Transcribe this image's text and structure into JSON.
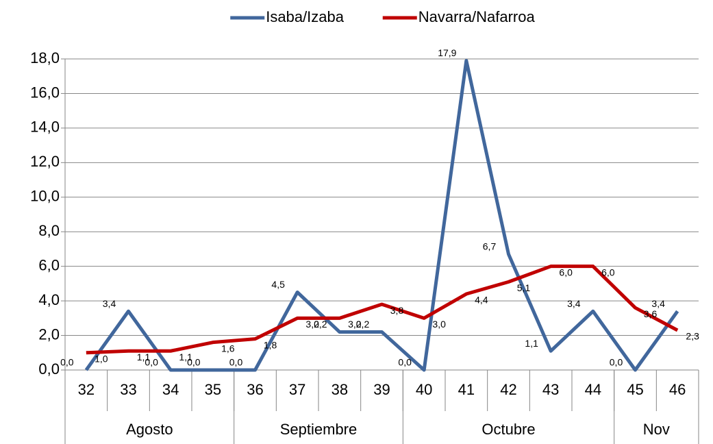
{
  "chart_data": {
    "type": "line",
    "categories": [
      "32",
      "33",
      "34",
      "35",
      "36",
      "37",
      "38",
      "39",
      "40",
      "41",
      "42",
      "43",
      "44",
      "45",
      "46"
    ],
    "category_groups": [
      "Agosto",
      "Agosto",
      "Agosto",
      "Agosto",
      "Septiembre",
      "Septiembre",
      "Septiembre",
      "Septiembre",
      "Octubre",
      "Octubre",
      "Octubre",
      "Octubre",
      "Octubre",
      "Nov",
      "Nov"
    ],
    "series": [
      {
        "name": "Isaba/Izaba",
        "color": "#41679c",
        "values": [
          0.0,
          3.4,
          0.0,
          0.0,
          0.0,
          4.5,
          2.2,
          2.2,
          0.0,
          17.9,
          6.7,
          1.1,
          3.4,
          0.0,
          3.4
        ],
        "value_labels": [
          "0,0",
          "3,4",
          "0,0",
          "0,0",
          "0,0",
          "4,5",
          "2,2",
          "2,2",
          "0,0",
          "17,9",
          "6,7",
          "1,1",
          "3,4",
          "0,0",
          "3,4"
        ]
      },
      {
        "name": "Navarra/Nafarroa",
        "color": "#c00000",
        "values": [
          1.0,
          1.1,
          1.1,
          1.6,
          1.8,
          3.0,
          3.0,
          3.8,
          3.0,
          4.4,
          5.1,
          6.0,
          6.0,
          3.6,
          2.3
        ],
        "value_labels": [
          "1,0",
          "1,1",
          "1,1",
          "1,6",
          "1,8",
          "3,0",
          "3,0",
          "3,8",
          "3,0",
          "4,4",
          "5,1",
          "6,0",
          "6,0",
          "3,6",
          "2,3"
        ]
      }
    ],
    "ylim": [
      0,
      18
    ],
    "yticks": [
      {
        "value": 0,
        "label": "0,0"
      },
      {
        "value": 2,
        "label": "2,0"
      },
      {
        "value": 4,
        "label": "4,0"
      },
      {
        "value": 6,
        "label": "6,0"
      },
      {
        "value": 8,
        "label": "8,0"
      },
      {
        "value": 10,
        "label": "10,0"
      },
      {
        "value": 12,
        "label": "12,0"
      },
      {
        "value": 14,
        "label": "14,0"
      },
      {
        "value": 16,
        "label": "16,0"
      },
      {
        "value": 18,
        "label": "18,0"
      }
    ],
    "grid": true,
    "legend": "top"
  }
}
